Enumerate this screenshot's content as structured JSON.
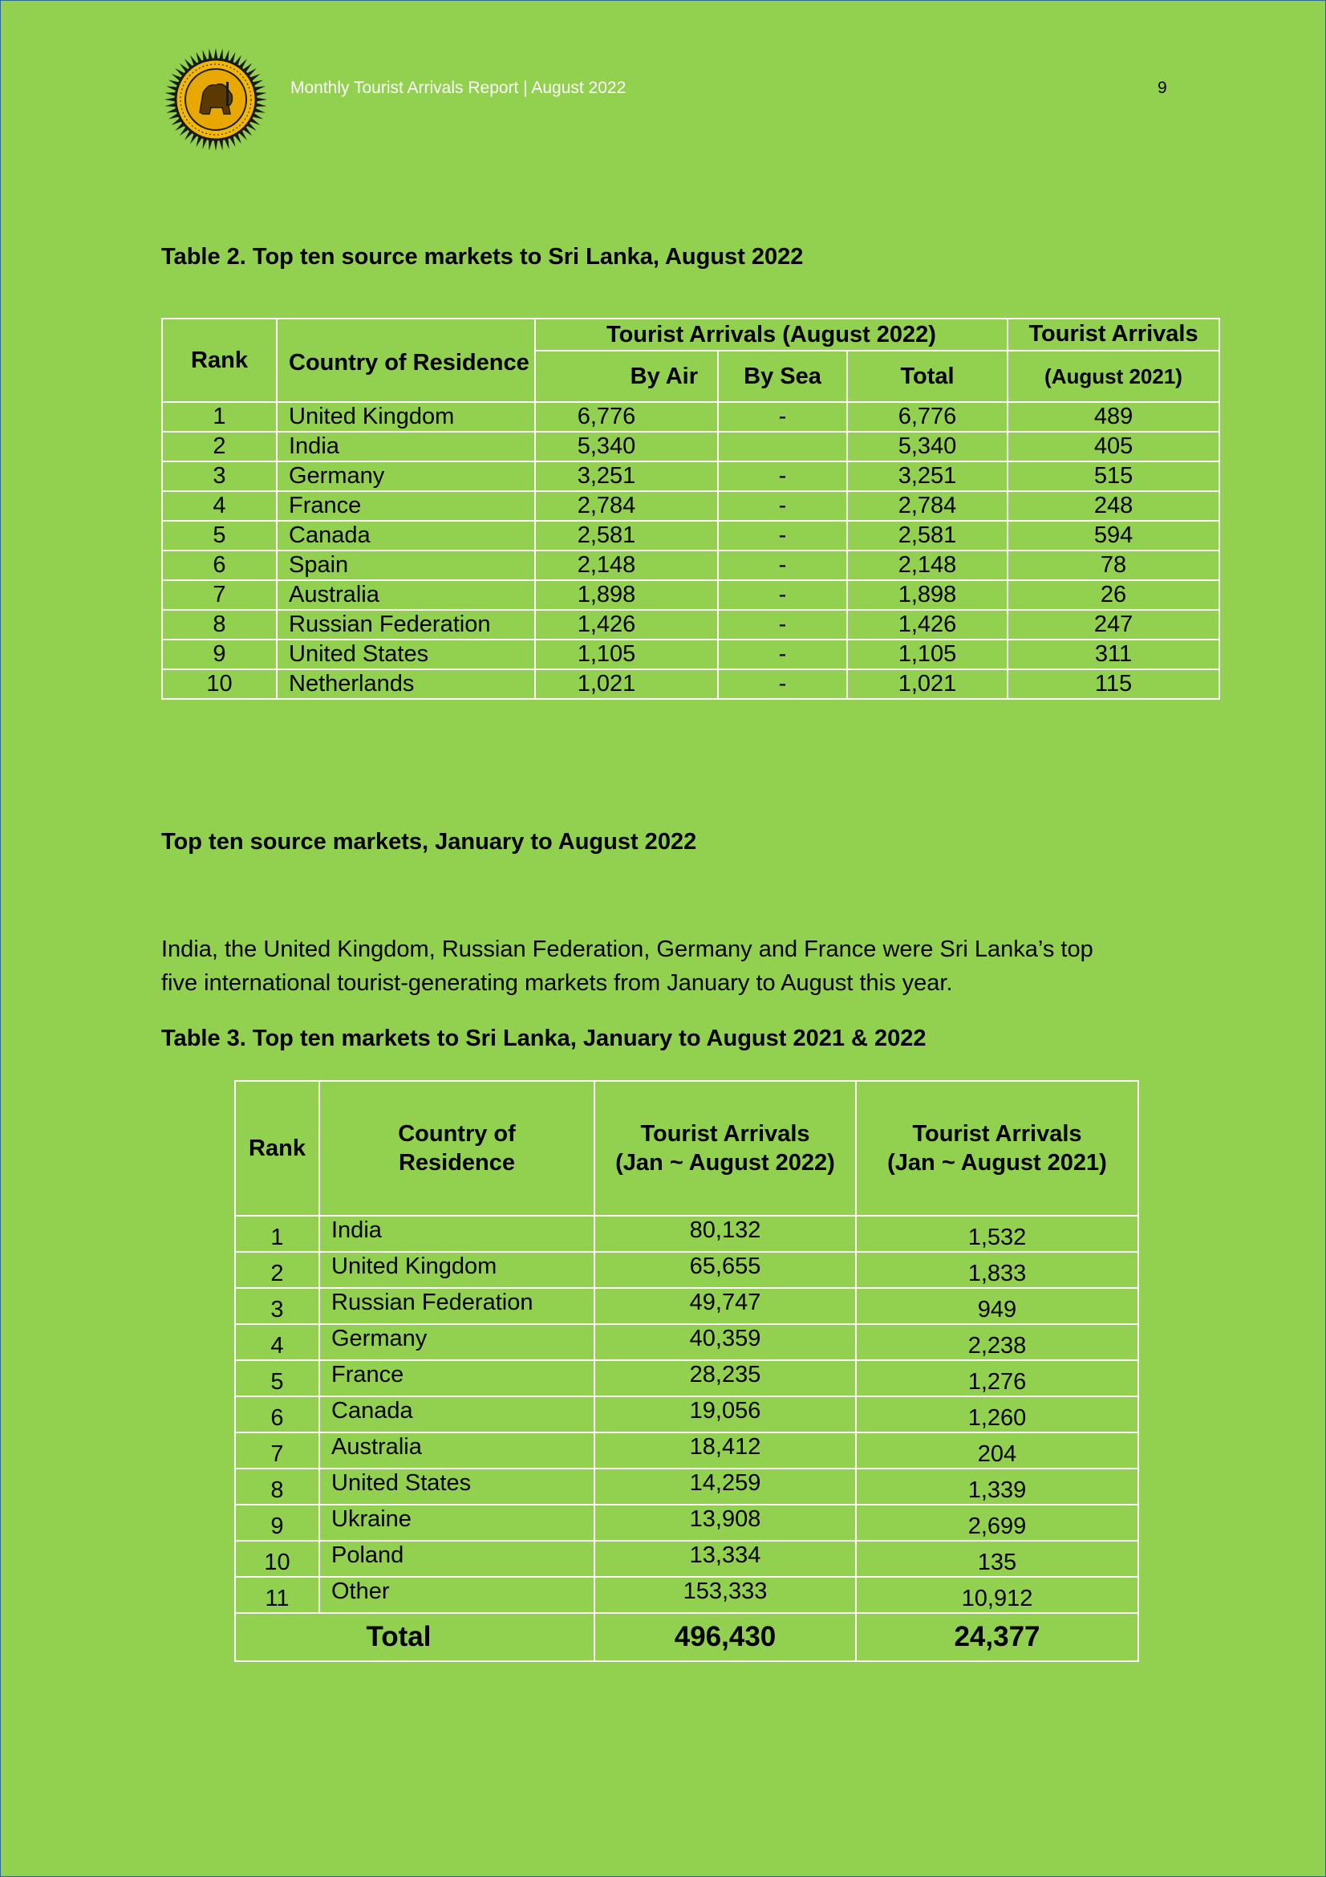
{
  "header": {
    "title": "Monthly Tourist Arrivals Report | August 2022",
    "page_number": "9"
  },
  "table2": {
    "title": "Table 2. Top ten source markets to Sri Lanka, August 2022",
    "headers": {
      "rank": "Rank",
      "country": "Country of Residence",
      "group": "Tourist Arrivals (August 2022)",
      "by_air": "By Air",
      "by_sea": "By Sea",
      "total": "Total",
      "prev_line1": "Tourist Arrivals",
      "prev_line2": "(August 2021)"
    },
    "rows": [
      {
        "rank": "1",
        "country": "United Kingdom",
        "air": "6,776",
        "sea": "-",
        "total": "6,776",
        "prev": "489"
      },
      {
        "rank": "2",
        "country": "India",
        "air": "5,340",
        "sea": "",
        "total": "5,340",
        "prev": "405"
      },
      {
        "rank": "3",
        "country": "Germany",
        "air": "3,251",
        "sea": "-",
        "total": "3,251",
        "prev": "515"
      },
      {
        "rank": "4",
        "country": "France",
        "air": "2,784",
        "sea": "-",
        "total": "2,784",
        "prev": "248"
      },
      {
        "rank": "5",
        "country": "Canada",
        "air": "2,581",
        "sea": "-",
        "total": "2,581",
        "prev": "594"
      },
      {
        "rank": "6",
        "country": "Spain",
        "air": "2,148",
        "sea": "-",
        "total": "2,148",
        "prev": "78"
      },
      {
        "rank": "7",
        "country": "Australia",
        "air": "1,898",
        "sea": "-",
        "total": "1,898",
        "prev": "26"
      },
      {
        "rank": "8",
        "country": "Russian Federation",
        "air": "1,426",
        "sea": "-",
        "total": "1,426",
        "prev": "247"
      },
      {
        "rank": "9",
        "country": "United States",
        "air": "1,105",
        "sea": "-",
        "total": "1,105",
        "prev": "311"
      },
      {
        "rank": "10",
        "country": "Netherlands",
        "air": "1,021",
        "sea": "-",
        "total": "1,021",
        "prev": "115"
      }
    ]
  },
  "section": {
    "heading": "Top ten source markets, January to August 2022",
    "paragraph_line1": "India, the United Kingdom, Russian Federation, Germany and France were Sri Lanka’s top",
    "paragraph_line2": "five international tourist-generating markets from January to August this year."
  },
  "table3": {
    "title": "Table 3. Top ten markets to Sri Lanka, January to August 2021 & 2022",
    "headers": {
      "rank": "Rank",
      "country_line1": "Country of",
      "country_line2": "Residence",
      "col2022_line1": "Tourist Arrivals",
      "col2022_line2": "(Jan ~ August 2022)",
      "col2021_line1": "Tourist Arrivals",
      "col2021_line2": "(Jan ~ August  2021)"
    },
    "rows": [
      {
        "rank": "1",
        "country": "India",
        "y2022": "80,132",
        "y2021": "1,532"
      },
      {
        "rank": "2",
        "country": "United Kingdom",
        "y2022": "65,655",
        "y2021": "1,833"
      },
      {
        "rank": "3",
        "country": "Russian Federation",
        "y2022": "49,747",
        "y2021": "949"
      },
      {
        "rank": "4",
        "country": "Germany",
        "y2022": "40,359",
        "y2021": "2,238"
      },
      {
        "rank": "5",
        "country": "France",
        "y2022": "28,235",
        "y2021": "1,276"
      },
      {
        "rank": "6",
        "country": "Canada",
        "y2022": "19,056",
        "y2021": "1,260"
      },
      {
        "rank": "7",
        "country": "Australia",
        "y2022": "18,412",
        "y2021": "204"
      },
      {
        "rank": "8",
        "country": "United States",
        "y2022": "14,259",
        "y2021": "1,339"
      },
      {
        "rank": "9",
        "country": "Ukraine",
        "y2022": "13,908",
        "y2021": "2,699"
      },
      {
        "rank": "10",
        "country": "Poland",
        "y2022": "13,334",
        "y2021": "135"
      },
      {
        "rank": "11",
        "country": "Other",
        "y2022": "153,333",
        "y2021": "10,912"
      }
    ],
    "total": {
      "label": "Total",
      "y2022": "496,430",
      "y2021": "24,377"
    }
  }
}
